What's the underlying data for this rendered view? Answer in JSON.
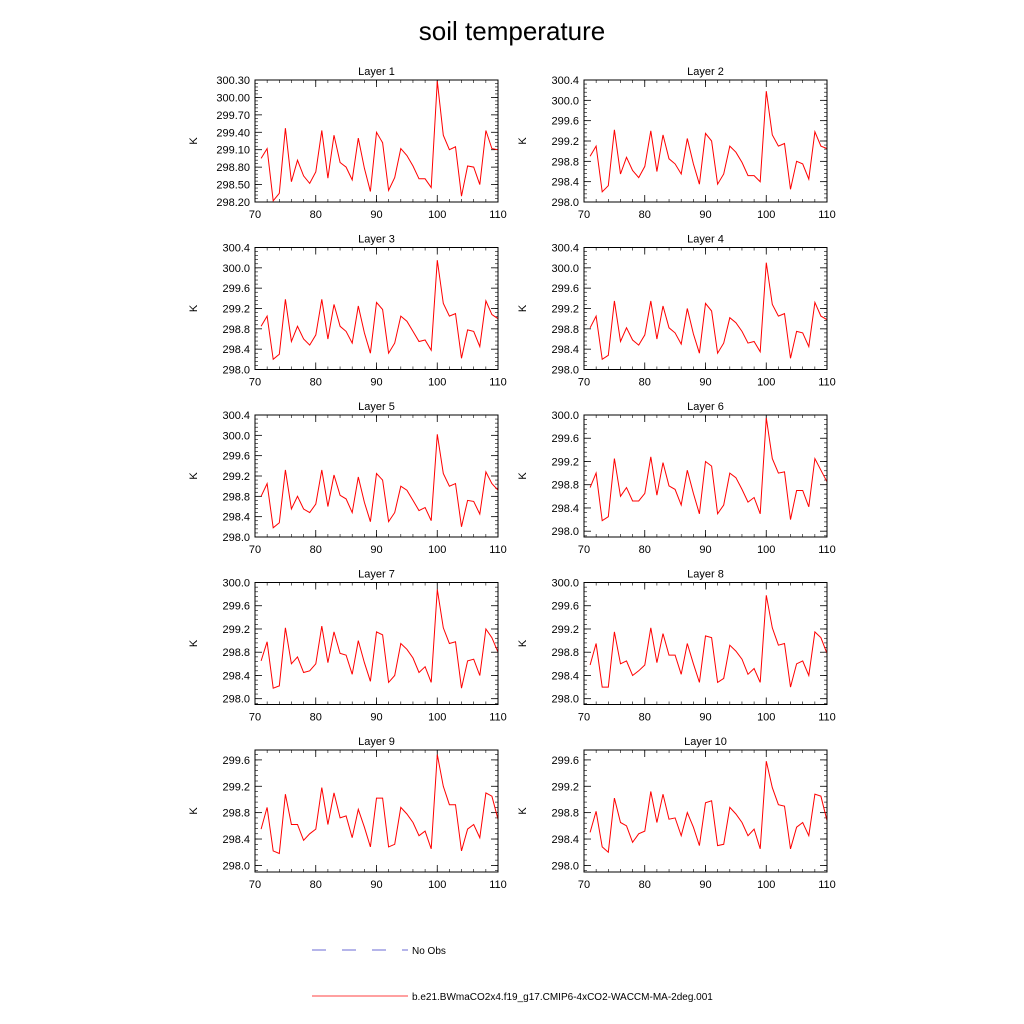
{
  "title": "soil temperature",
  "colors": {
    "model_line": "#ff0000",
    "obs_line": "#6b6bd6",
    "frame": "#000000"
  },
  "legend": {
    "obs_label": "No Obs",
    "model_label": "b.e21.BWmaCO2x4.f19_g17.CMIP6-4xCO2-WACCM-MA-2deg.001"
  },
  "chart_data": [
    {
      "type": "line",
      "title": "Layer 1",
      "ylabel": "K",
      "xlim": [
        70,
        110
      ],
      "ylim": [
        298.2,
        300.3
      ],
      "xticks": [
        70,
        80,
        90,
        100,
        110
      ],
      "yticks": [
        "298.20",
        "298.50",
        "298.80",
        "299.10",
        "299.40",
        "299.70",
        "300.00",
        "300.30"
      ],
      "series": [
        {
          "x": [
            71,
            72,
            73,
            74,
            75,
            76,
            77,
            78,
            79,
            80,
            81,
            82,
            83,
            84,
            85,
            86,
            87,
            88,
            89,
            90,
            91,
            92,
            93,
            94,
            95,
            96,
            97,
            98,
            99,
            100,
            101,
            102,
            103,
            104,
            105,
            106,
            107,
            108,
            109,
            110
          ],
          "values": [
            298.95,
            299.12,
            298.22,
            298.35,
            299.47,
            298.55,
            298.92,
            298.65,
            298.52,
            298.72,
            299.43,
            298.61,
            299.35,
            298.88,
            298.8,
            298.58,
            299.3,
            298.78,
            298.38,
            299.4,
            299.22,
            298.4,
            298.62,
            299.12,
            299.0,
            298.82,
            298.6,
            298.6,
            298.45,
            300.28,
            299.35,
            299.1,
            299.15,
            298.3,
            298.82,
            298.8,
            298.5,
            299.43,
            299.12,
            299.1
          ]
        }
      ]
    },
    {
      "type": "line",
      "title": "Layer 2",
      "ylabel": "K",
      "xlim": [
        70,
        110
      ],
      "ylim": [
        298.0,
        300.4
      ],
      "xticks": [
        70,
        80,
        90,
        100,
        110
      ],
      "yticks": [
        "298.0",
        "298.4",
        "298.8",
        "299.2",
        "299.6",
        "300.0",
        "300.4"
      ],
      "series": [
        {
          "x": [
            71,
            72,
            73,
            74,
            75,
            76,
            77,
            78,
            79,
            80,
            81,
            82,
            83,
            84,
            85,
            86,
            87,
            88,
            89,
            90,
            91,
            92,
            93,
            94,
            95,
            96,
            97,
            98,
            99,
            100,
            101,
            102,
            103,
            104,
            105,
            106,
            107,
            108,
            109,
            110
          ],
          "values": [
            298.9,
            299.1,
            298.2,
            298.32,
            299.42,
            298.55,
            298.88,
            298.62,
            298.48,
            298.7,
            299.4,
            298.6,
            299.32,
            298.85,
            298.75,
            298.55,
            299.25,
            298.75,
            298.35,
            299.35,
            299.2,
            298.35,
            298.55,
            299.1,
            298.98,
            298.78,
            298.52,
            298.52,
            298.4,
            300.18,
            299.32,
            299.1,
            299.15,
            298.25,
            298.8,
            298.75,
            298.45,
            299.38,
            299.1,
            299.05
          ]
        }
      ]
    },
    {
      "type": "line",
      "title": "Layer 3",
      "ylabel": "K",
      "xlim": [
        70,
        110
      ],
      "ylim": [
        298.0,
        300.4
      ],
      "xticks": [
        70,
        80,
        90,
        100,
        110
      ],
      "yticks": [
        "298.0",
        "298.4",
        "298.8",
        "299.2",
        "299.6",
        "300.0",
        "300.4"
      ],
      "series": [
        {
          "x": [
            71,
            72,
            73,
            74,
            75,
            76,
            77,
            78,
            79,
            80,
            81,
            82,
            83,
            84,
            85,
            86,
            87,
            88,
            89,
            90,
            91,
            92,
            93,
            94,
            95,
            96,
            97,
            98,
            99,
            100,
            101,
            102,
            103,
            104,
            105,
            106,
            107,
            108,
            109,
            110
          ],
          "values": [
            298.85,
            299.05,
            298.2,
            298.3,
            299.38,
            298.55,
            298.85,
            298.6,
            298.48,
            298.68,
            299.38,
            298.6,
            299.28,
            298.85,
            298.75,
            298.52,
            299.25,
            298.72,
            298.32,
            299.32,
            299.18,
            298.32,
            298.52,
            299.05,
            298.95,
            298.75,
            298.55,
            298.58,
            298.38,
            300.15,
            299.3,
            299.05,
            299.1,
            298.22,
            298.78,
            298.75,
            298.45,
            299.35,
            299.08,
            299.0
          ]
        }
      ]
    },
    {
      "type": "line",
      "title": "Layer 4",
      "ylabel": "K",
      "xlim": [
        70,
        110
      ],
      "ylim": [
        298.0,
        300.4
      ],
      "xticks": [
        70,
        80,
        90,
        100,
        110
      ],
      "yticks": [
        "298.0",
        "298.4",
        "298.8",
        "299.2",
        "299.6",
        "300.0",
        "300.4"
      ],
      "series": [
        {
          "x": [
            71,
            72,
            73,
            74,
            75,
            76,
            77,
            78,
            79,
            80,
            81,
            82,
            83,
            84,
            85,
            86,
            87,
            88,
            89,
            90,
            91,
            92,
            93,
            94,
            95,
            96,
            97,
            98,
            99,
            100,
            101,
            102,
            103,
            104,
            105,
            106,
            107,
            108,
            109,
            110
          ],
          "values": [
            298.82,
            299.05,
            298.2,
            298.28,
            299.35,
            298.55,
            298.82,
            298.58,
            298.48,
            298.68,
            299.35,
            298.6,
            299.25,
            298.82,
            298.72,
            298.5,
            299.2,
            298.7,
            298.32,
            299.3,
            299.15,
            298.32,
            298.52,
            299.02,
            298.92,
            298.75,
            298.52,
            298.55,
            298.35,
            300.1,
            299.28,
            299.05,
            299.1,
            298.22,
            298.75,
            298.72,
            298.45,
            299.32,
            299.05,
            298.98
          ]
        }
      ]
    },
    {
      "type": "line",
      "title": "Layer 5",
      "ylabel": "K",
      "xlim": [
        70,
        110
      ],
      "ylim": [
        298.0,
        300.4
      ],
      "xticks": [
        70,
        80,
        90,
        100,
        110
      ],
      "yticks": [
        "298.0",
        "298.4",
        "298.8",
        "299.2",
        "299.6",
        "300.0",
        "300.4"
      ],
      "series": [
        {
          "x": [
            71,
            72,
            73,
            74,
            75,
            76,
            77,
            78,
            79,
            80,
            81,
            82,
            83,
            84,
            85,
            86,
            87,
            88,
            89,
            90,
            91,
            92,
            93,
            94,
            95,
            96,
            97,
            98,
            99,
            100,
            101,
            102,
            103,
            104,
            105,
            106,
            107,
            108,
            109,
            110
          ],
          "values": [
            298.8,
            299.05,
            298.18,
            298.28,
            299.32,
            298.55,
            298.8,
            298.55,
            298.48,
            298.65,
            299.32,
            298.6,
            299.22,
            298.82,
            298.75,
            298.48,
            299.18,
            298.68,
            298.3,
            299.25,
            299.12,
            298.3,
            298.48,
            299.0,
            298.92,
            298.72,
            298.52,
            298.58,
            298.32,
            300.02,
            299.25,
            299.0,
            299.05,
            298.2,
            298.72,
            298.7,
            298.45,
            299.28,
            299.05,
            298.92
          ]
        }
      ]
    },
    {
      "type": "line",
      "title": "Layer 6",
      "ylabel": "K",
      "xlim": [
        70,
        110
      ],
      "ylim": [
        297.9,
        300.0
      ],
      "xticks": [
        70,
        80,
        90,
        100,
        110
      ],
      "yticks": [
        "298.0",
        "298.4",
        "298.8",
        "299.2",
        "299.6",
        "300.0"
      ],
      "series": [
        {
          "x": [
            71,
            72,
            73,
            74,
            75,
            76,
            77,
            78,
            79,
            80,
            81,
            82,
            83,
            84,
            85,
            86,
            87,
            88,
            89,
            90,
            91,
            92,
            93,
            94,
            95,
            96,
            97,
            98,
            99,
            100,
            101,
            102,
            103,
            104,
            105,
            106,
            107,
            108,
            109,
            110
          ],
          "values": [
            298.75,
            299.0,
            298.18,
            298.25,
            299.25,
            298.6,
            298.75,
            298.52,
            298.52,
            298.65,
            299.28,
            298.62,
            299.18,
            298.78,
            298.72,
            298.45,
            299.05,
            298.65,
            298.3,
            299.2,
            299.12,
            298.3,
            298.45,
            299.0,
            298.92,
            298.72,
            298.5,
            298.58,
            298.3,
            299.95,
            299.25,
            299.0,
            299.02,
            298.2,
            298.7,
            298.7,
            298.42,
            299.25,
            299.05,
            298.85
          ]
        }
      ]
    },
    {
      "type": "line",
      "title": "Layer 7",
      "ylabel": "K",
      "xlim": [
        70,
        110
      ],
      "ylim": [
        297.9,
        300.0
      ],
      "xticks": [
        70,
        80,
        90,
        100,
        110
      ],
      "yticks": [
        "298.0",
        "298.4",
        "298.8",
        "299.2",
        "299.6",
        "300.0"
      ],
      "series": [
        {
          "x": [
            71,
            72,
            73,
            74,
            75,
            76,
            77,
            78,
            79,
            80,
            81,
            82,
            83,
            84,
            85,
            86,
            87,
            88,
            89,
            90,
            91,
            92,
            93,
            94,
            95,
            96,
            97,
            98,
            99,
            100,
            101,
            102,
            103,
            104,
            105,
            106,
            107,
            108,
            109,
            110
          ],
          "values": [
            298.65,
            298.98,
            298.18,
            298.22,
            299.22,
            298.6,
            298.72,
            298.45,
            298.48,
            298.6,
            299.25,
            298.62,
            299.15,
            298.78,
            298.75,
            298.42,
            299.0,
            298.62,
            298.3,
            299.15,
            299.1,
            298.28,
            298.4,
            298.95,
            298.85,
            298.7,
            298.45,
            298.55,
            298.28,
            299.88,
            299.22,
            298.95,
            298.98,
            298.18,
            298.65,
            298.68,
            298.4,
            299.2,
            299.05,
            298.8
          ]
        }
      ]
    },
    {
      "type": "line",
      "title": "Layer 8",
      "ylabel": "K",
      "xlim": [
        70,
        110
      ],
      "ylim": [
        297.9,
        300.0
      ],
      "xticks": [
        70,
        80,
        90,
        100,
        110
      ],
      "yticks": [
        "298.0",
        "298.4",
        "298.8",
        "299.2",
        "299.6",
        "300.0"
      ],
      "series": [
        {
          "x": [
            71,
            72,
            73,
            74,
            75,
            76,
            77,
            78,
            79,
            80,
            81,
            82,
            83,
            84,
            85,
            86,
            87,
            88,
            89,
            90,
            91,
            92,
            93,
            94,
            95,
            96,
            97,
            98,
            99,
            100,
            101,
            102,
            103,
            104,
            105,
            106,
            107,
            108,
            109,
            110
          ],
          "values": [
            298.58,
            298.95,
            298.2,
            298.2,
            299.15,
            298.6,
            298.65,
            298.4,
            298.48,
            298.58,
            299.22,
            298.62,
            299.12,
            298.75,
            298.75,
            298.42,
            298.95,
            298.6,
            298.28,
            299.08,
            299.05,
            298.28,
            298.35,
            298.92,
            298.82,
            298.68,
            298.42,
            298.52,
            298.28,
            299.78,
            299.22,
            298.92,
            298.95,
            298.2,
            298.6,
            298.65,
            298.4,
            299.15,
            299.05,
            298.78
          ]
        }
      ]
    },
    {
      "type": "line",
      "title": "Layer 9",
      "ylabel": "K",
      "xlim": [
        70,
        110
      ],
      "ylim": [
        297.9,
        299.75
      ],
      "xticks": [
        70,
        80,
        90,
        100,
        110
      ],
      "yticks": [
        "298.0",
        "298.4",
        "298.8",
        "299.2",
        "299.6"
      ],
      "series": [
        {
          "x": [
            71,
            72,
            73,
            74,
            75,
            76,
            77,
            78,
            79,
            80,
            81,
            82,
            83,
            84,
            85,
            86,
            87,
            88,
            89,
            90,
            91,
            92,
            93,
            94,
            95,
            96,
            97,
            98,
            99,
            100,
            101,
            102,
            103,
            104,
            105,
            106,
            107,
            108,
            109,
            110
          ],
          "values": [
            298.55,
            298.88,
            298.22,
            298.18,
            299.08,
            298.62,
            298.62,
            298.38,
            298.48,
            298.55,
            299.18,
            298.62,
            299.1,
            298.72,
            298.75,
            298.42,
            298.85,
            298.58,
            298.28,
            299.02,
            299.02,
            298.28,
            298.32,
            298.88,
            298.78,
            298.65,
            298.45,
            298.52,
            298.25,
            299.68,
            299.2,
            298.92,
            298.92,
            298.22,
            298.55,
            298.62,
            298.42,
            299.1,
            299.05,
            298.7
          ]
        }
      ]
    },
    {
      "type": "line",
      "title": "Layer 10",
      "ylabel": "K",
      "xlim": [
        70,
        110
      ],
      "ylim": [
        297.9,
        299.75
      ],
      "xticks": [
        70,
        80,
        90,
        100,
        110
      ],
      "yticks": [
        "298.0",
        "298.4",
        "298.8",
        "299.2",
        "299.6"
      ],
      "series": [
        {
          "x": [
            71,
            72,
            73,
            74,
            75,
            76,
            77,
            78,
            79,
            80,
            81,
            82,
            83,
            84,
            85,
            86,
            87,
            88,
            89,
            90,
            91,
            92,
            93,
            94,
            95,
            96,
            97,
            98,
            99,
            100,
            101,
            102,
            103,
            104,
            105,
            106,
            107,
            108,
            109,
            110
          ],
          "values": [
            298.5,
            298.82,
            298.28,
            298.2,
            299.02,
            298.65,
            298.6,
            298.35,
            298.48,
            298.52,
            299.12,
            298.65,
            299.08,
            298.7,
            298.72,
            298.45,
            298.8,
            298.58,
            298.3,
            298.95,
            298.98,
            298.3,
            298.32,
            298.88,
            298.78,
            298.65,
            298.45,
            298.55,
            298.25,
            299.58,
            299.18,
            298.92,
            298.9,
            298.25,
            298.58,
            298.65,
            298.45,
            299.08,
            299.05,
            298.68
          ]
        }
      ]
    }
  ]
}
